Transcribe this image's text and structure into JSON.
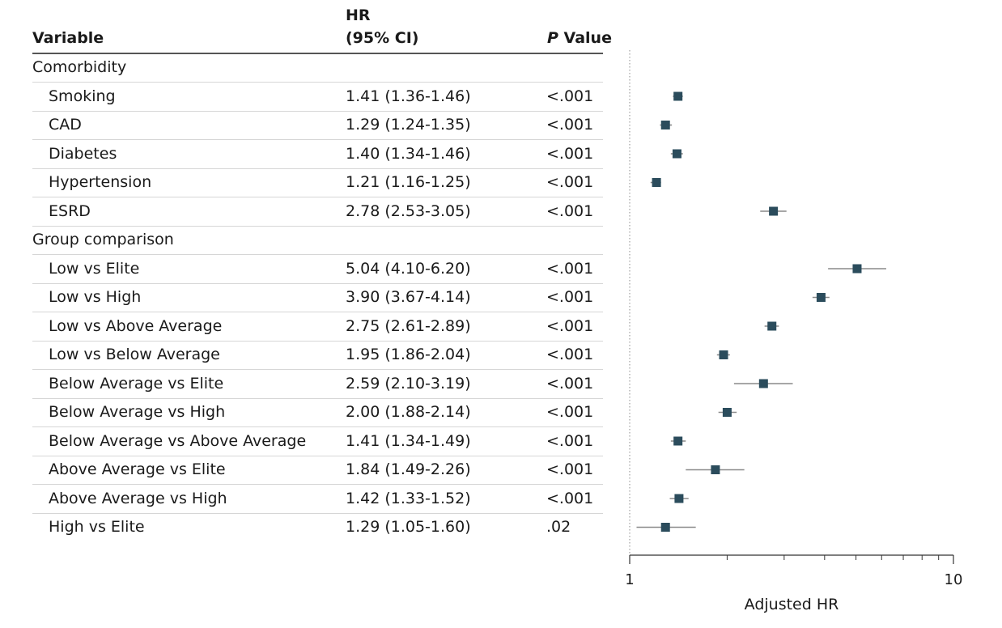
{
  "headers": {
    "variable": "Variable",
    "hr_line1": "HR",
    "hr_line2": "(95% CI)",
    "p_italic": "P",
    "p_rest": " Value"
  },
  "rows": [
    {
      "label": "Comorbidity",
      "group": true
    },
    {
      "label": "Smoking",
      "hr_text": "1.41 (1.36-1.46)",
      "p": "<.001",
      "hr": 1.41,
      "lo": 1.36,
      "hi": 1.46
    },
    {
      "label": "CAD",
      "hr_text": "1.29 (1.24-1.35)",
      "p": "<.001",
      "hr": 1.29,
      "lo": 1.24,
      "hi": 1.35
    },
    {
      "label": "Diabetes",
      "hr_text": "1.40 (1.34-1.46)",
      "p": "<.001",
      "hr": 1.4,
      "lo": 1.34,
      "hi": 1.46
    },
    {
      "label": "Hypertension",
      "hr_text": "1.21 (1.16-1.25)",
      "p": "<.001",
      "hr": 1.21,
      "lo": 1.16,
      "hi": 1.25
    },
    {
      "label": "ESRD",
      "hr_text": "2.78 (2.53-3.05)",
      "p": "<.001",
      "hr": 2.78,
      "lo": 2.53,
      "hi": 3.05
    },
    {
      "label": "Group comparison",
      "group": true
    },
    {
      "label": "Low vs Elite",
      "hr_text": "5.04 (4.10-6.20)",
      "p": "<.001",
      "hr": 5.04,
      "lo": 4.1,
      "hi": 6.2
    },
    {
      "label": "Low vs High",
      "hr_text": "3.90 (3.67-4.14)",
      "p": "<.001",
      "hr": 3.9,
      "lo": 3.67,
      "hi": 4.14
    },
    {
      "label": "Low vs Above Average",
      "hr_text": "2.75 (2.61-2.89)",
      "p": "<.001",
      "hr": 2.75,
      "lo": 2.61,
      "hi": 2.89
    },
    {
      "label": "Low vs Below Average",
      "hr_text": "1.95 (1.86-2.04)",
      "p": "<.001",
      "hr": 1.95,
      "lo": 1.86,
      "hi": 2.04
    },
    {
      "label": "Below Average vs Elite",
      "hr_text": "2.59 (2.10-3.19)",
      "p": "<.001",
      "hr": 2.59,
      "lo": 2.1,
      "hi": 3.19
    },
    {
      "label": "Below Average vs High",
      "hr_text": "2.00 (1.88-2.14)",
      "p": "<.001",
      "hr": 2.0,
      "lo": 1.88,
      "hi": 2.14
    },
    {
      "label": "Below Average vs Above Average",
      "hr_text": "1.41 (1.34-1.49)",
      "p": "<.001",
      "hr": 1.41,
      "lo": 1.34,
      "hi": 1.49
    },
    {
      "label": "Above Average vs Elite",
      "hr_text": "1.84 (1.49-2.26)",
      "p": "<.001",
      "hr": 1.84,
      "lo": 1.49,
      "hi": 2.26
    },
    {
      "label": "Above Average vs High",
      "hr_text": "1.42 (1.33-1.52)",
      "p": "<.001",
      "hr": 1.42,
      "lo": 1.33,
      "hi": 1.52
    },
    {
      "label": "High vs Elite",
      "hr_text": "1.29 (1.05-1.60)",
      "p": ".02",
      "hr": 1.29,
      "lo": 1.05,
      "hi": 1.6
    }
  ],
  "chart_data": {
    "type": "forest",
    "xlabel": "Adjusted HR",
    "xscale": "log",
    "xlim": [
      1,
      10
    ],
    "xticks": [
      1,
      10
    ],
    "xtick_labels": [
      "1",
      "10"
    ],
    "reference_line": 1,
    "marker_color": "#2b4c5c",
    "ci_color": "#8a8a8a"
  }
}
